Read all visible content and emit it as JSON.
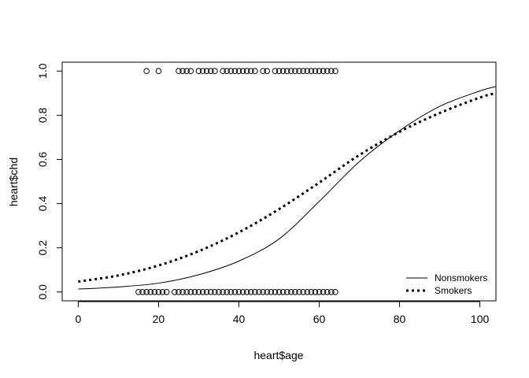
{
  "chart_data": {
    "type": "scatter",
    "xlabel": "heart$age",
    "ylabel": "heart$chd",
    "xlim": [
      -4,
      104
    ],
    "ylim": [
      -0.04,
      1.04
    ],
    "x_ticks": [
      0,
      20,
      40,
      60,
      80,
      100
    ],
    "x_tick_labels": [
      "0",
      "20",
      "40",
      "60",
      "80",
      "100"
    ],
    "y_ticks": [
      0.0,
      0.2,
      0.4,
      0.6,
      0.8,
      1.0
    ],
    "y_tick_labels": [
      "0.0",
      "0.2",
      "0.4",
      "0.6",
      "0.8",
      "1.0"
    ],
    "grid": false,
    "legend_position": "bottom-right",
    "points": {
      "chd_1_ages": [
        17,
        20,
        25,
        26,
        27,
        28,
        30,
        31,
        32,
        33,
        34,
        36,
        37,
        38,
        39,
        40,
        41,
        42,
        43,
        44,
        46,
        47,
        49,
        50,
        51,
        52,
        53,
        54,
        55,
        56,
        57,
        58,
        59,
        60,
        61,
        62,
        63,
        64
      ],
      "chd_0_ages": [
        15,
        16,
        17,
        18,
        19,
        20,
        21,
        22,
        24,
        25,
        26,
        27,
        28,
        29,
        30,
        31,
        32,
        33,
        34,
        35,
        36,
        37,
        38,
        39,
        40,
        41,
        42,
        43,
        44,
        45,
        46,
        47,
        48,
        49,
        50,
        51,
        52,
        53,
        54,
        55,
        56,
        57,
        58,
        59,
        60,
        61,
        62,
        63,
        64
      ]
    },
    "series": [
      {
        "name": "Nonsmokers",
        "style": "solid",
        "x": [
          0,
          10,
          20,
          30,
          40,
          50,
          60,
          70,
          80,
          90,
          100,
          104
        ],
        "y": [
          0.013,
          0.023,
          0.04,
          0.078,
          0.14,
          0.24,
          0.41,
          0.59,
          0.73,
          0.84,
          0.91,
          0.93
        ]
      },
      {
        "name": "Smokers",
        "style": "dotted",
        "x": [
          0,
          10,
          20,
          30,
          40,
          50,
          60,
          70,
          80,
          90,
          100,
          104
        ],
        "y": [
          0.047,
          0.075,
          0.12,
          0.185,
          0.27,
          0.375,
          0.495,
          0.62,
          0.725,
          0.81,
          0.88,
          0.9
        ]
      }
    ]
  }
}
